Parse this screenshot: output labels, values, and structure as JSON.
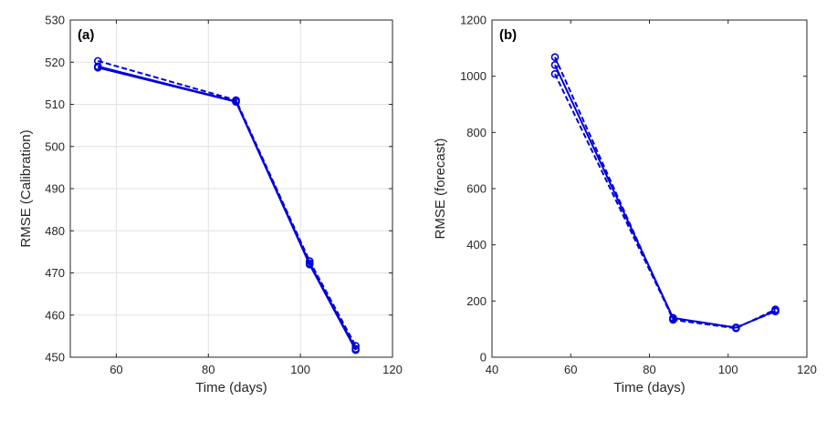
{
  "chart_data": [
    {
      "type": "line",
      "panel_label": "(a)",
      "xlabel": "Time (days)",
      "ylabel": "RMSE (Calibration)",
      "xlim": [
        50,
        120
      ],
      "ylim": [
        450,
        530
      ],
      "xticks": [
        60,
        80,
        100,
        120
      ],
      "yticks": [
        450,
        460,
        470,
        480,
        490,
        500,
        510,
        520,
        530
      ],
      "grid": true,
      "marker": "circle",
      "color": "#0000dd",
      "x": [
        56,
        86,
        102,
        112
      ],
      "series": [
        {
          "style": "solid",
          "values": [
            518.7,
            510.6,
            472.0,
            451.7
          ]
        },
        {
          "style": "dashed",
          "values": [
            520.3,
            511.0,
            472.8,
            452.7
          ]
        },
        {
          "style": "solid",
          "values": [
            519.0,
            510.7,
            472.3,
            452.0
          ]
        }
      ]
    },
    {
      "type": "line",
      "panel_label": "(b)",
      "xlabel": "Time (days)",
      "ylabel": "RMSE (forecast)",
      "xlim": [
        40,
        120
      ],
      "ylim": [
        0,
        1200
      ],
      "xticks": [
        40,
        60,
        80,
        100,
        120
      ],
      "yticks": [
        0,
        200,
        400,
        600,
        800,
        1000,
        1200
      ],
      "grid": false,
      "marker": "circle",
      "color": "#0000dd",
      "x": [
        56,
        86,
        102,
        112
      ],
      "series": [
        {
          "style": "solid",
          "values": [
            1040,
            140,
            105,
            165
          ]
        },
        {
          "style": "dashed",
          "values": [
            1068,
            133,
            103,
            170
          ]
        },
        {
          "style": "dashed",
          "values": [
            1008,
            137,
            106,
            163
          ]
        }
      ]
    }
  ]
}
